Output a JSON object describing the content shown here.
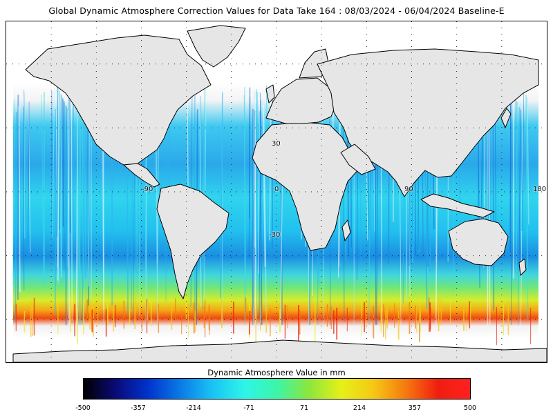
{
  "title": "Global Dynamic Atmosphere Correction Values for Data Take 164 : 08/03/2024 - 06/04/2024 Baseline-E",
  "map": {
    "projection": "equirectangular",
    "longitude_range": [
      -180,
      180
    ],
    "latitude_range": [
      -80,
      80
    ],
    "graticule_spacing_deg": 30,
    "graticule_labels": [
      "-90",
      "0",
      "90",
      "180",
      "30",
      "-30"
    ],
    "land_color": "#e6e6e6",
    "coastline_color": "#000000",
    "no_data_color": "#ffffff"
  },
  "colorbar": {
    "title": "Dynamic Atmosphere Value in mm",
    "range": [
      -500,
      500
    ],
    "tick_labels": [
      "-500",
      "-357",
      "-214",
      "-71",
      "71",
      "214",
      "357",
      "500"
    ],
    "stops": [
      "#000000",
      "#0a0a78",
      "#0033cc",
      "#0a7ae6",
      "#19c3f5",
      "#2ef5e8",
      "#3df5a8",
      "#8ce63d",
      "#e6f019",
      "#f5c814",
      "#f57a0f",
      "#f01e0f",
      "#ff2020"
    ]
  }
}
